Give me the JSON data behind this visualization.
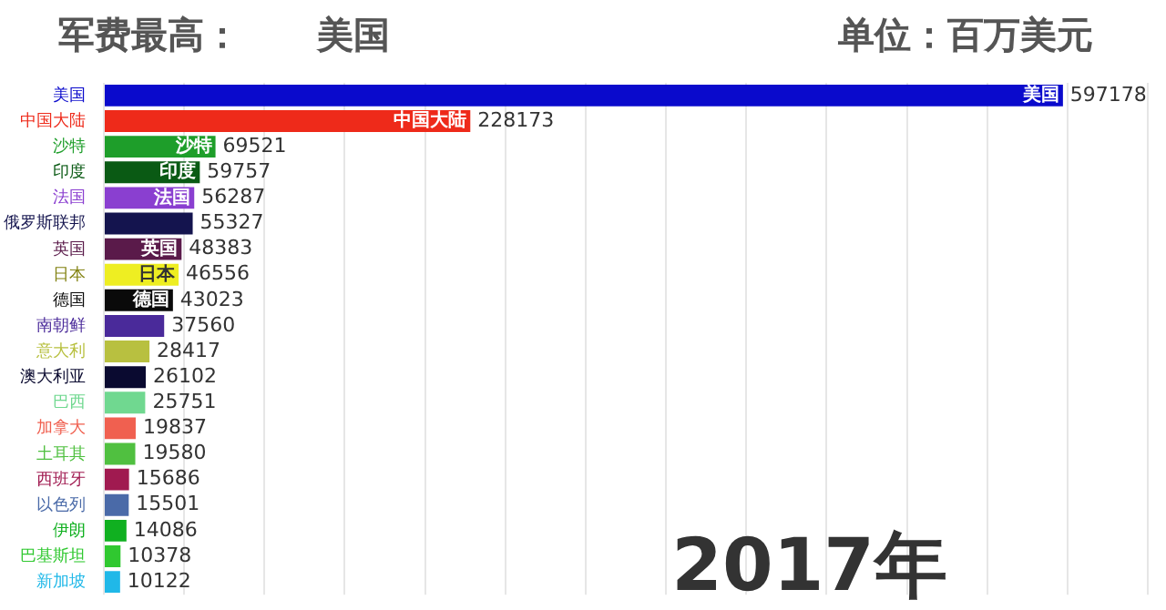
{
  "chart_data": {
    "type": "bar",
    "orientation": "horizontal",
    "title": "军费最高：      美国",
    "annotations": [
      "单位：百万美元",
      "2017年"
    ],
    "categories": [
      "美国",
      "中国大陆",
      "沙特",
      "印度",
      "法国",
      "俄罗斯联邦",
      "英国",
      "日本",
      "德国",
      "南朝鲜",
      "意大利",
      "澳大利亚",
      "巴西",
      "加拿大",
      "土耳其",
      "西班牙",
      "以色列",
      "伊朗",
      "巴基斯坦",
      "新加坡"
    ],
    "values": [
      597178,
      228173,
      69521,
      59757,
      56287,
      55327,
      48383,
      46556,
      43023,
      37560,
      28417,
      26102,
      25751,
      19837,
      19580,
      15686,
      15501,
      14086,
      10378,
      10122
    ],
    "colors": [
      "#0a0acc",
      "#ee2a1a",
      "#1e9e2a",
      "#0a5a14",
      "#8a3fd0",
      "#14144e",
      "#5a1a4a",
      "#eeee22",
      "#0a0a0a",
      "#4a2a9a",
      "#b8c040",
      "#0a0a30",
      "#70d890",
      "#f06050",
      "#50c040",
      "#a01a50",
      "#4a6aa8",
      "#10b020",
      "#30c830",
      "#20b8e8"
    ],
    "xlim": [
      0,
      650000
    ],
    "xticks": [
      {
        "value": 0,
        "label": null
      },
      {
        "value": 50000,
        "label": null
      },
      {
        "value": 100000,
        "label": null
      },
      {
        "value": 150000,
        "label": null
      },
      {
        "value": 200000,
        "label": null
      },
      {
        "value": 250000,
        "label": null
      },
      {
        "value": 300000,
        "label": null
      },
      {
        "value": 350000,
        "label": null
      },
      {
        "value": 400000,
        "label": null
      },
      {
        "value": 450000,
        "label": null
      },
      {
        "value": 500000,
        "label": null
      },
      {
        "value": 550000,
        "label": null
      },
      {
        "value": 600000,
        "label": null
      },
      {
        "value": 650000,
        "label": null
      }
    ],
    "grid": "x",
    "tick_labels": "y",
    "data_labels": true
  }
}
